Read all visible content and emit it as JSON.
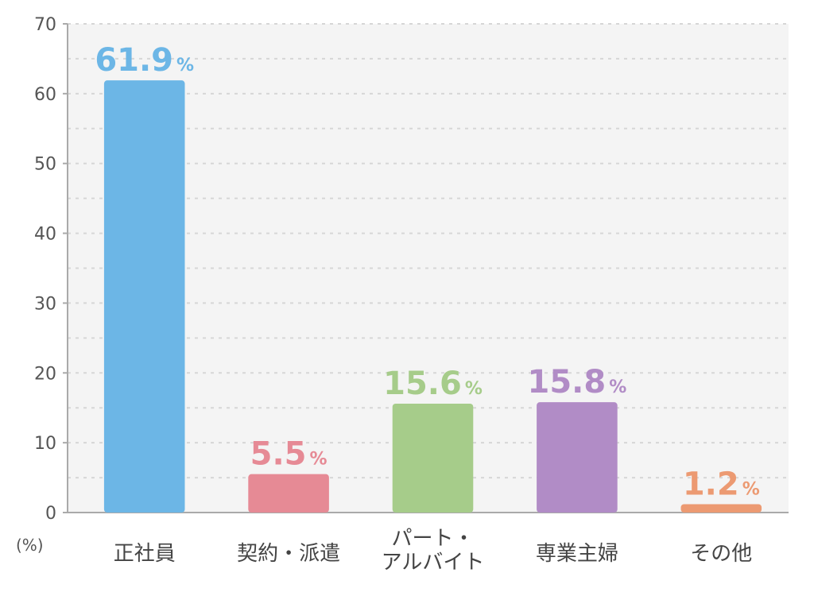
{
  "chart_data": {
    "type": "bar",
    "categories": [
      "正社員",
      "契約・派遣",
      "パート・アルバイト",
      "専業主婦",
      "その他"
    ],
    "category_lines": [
      [
        "正社員"
      ],
      [
        "契約・派遣"
      ],
      [
        "パート・",
        "アルバイト"
      ],
      [
        "専業主婦"
      ],
      [
        "その他"
      ]
    ],
    "values": [
      61.9,
      5.5,
      15.6,
      15.8,
      1.2
    ],
    "value_labels": [
      "61.9",
      "5.5",
      "15.6",
      "15.8",
      "1.2"
    ],
    "value_suffix": "%",
    "colors": [
      "#6cb6e6",
      "#e68a95",
      "#a6cc8a",
      "#b18cc6",
      "#ec9a72"
    ],
    "ylim": [
      0,
      70
    ],
    "yticks": [
      0,
      10,
      20,
      30,
      40,
      50,
      60,
      70
    ],
    "ytick_labels": [
      "0",
      "10",
      "20",
      "30",
      "40",
      "50",
      "60",
      "70"
    ],
    "ylabel": "(%)",
    "grid": true,
    "plot_background": "#f4f4f4"
  }
}
